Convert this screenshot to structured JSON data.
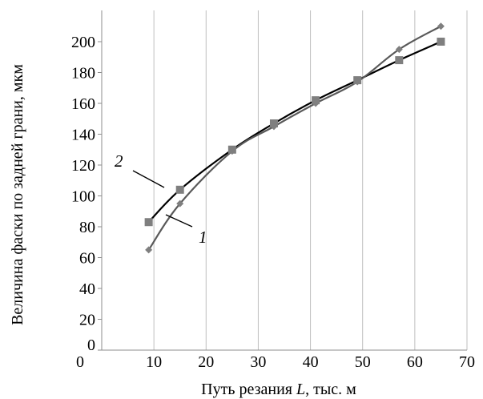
{
  "chart_data": {
    "type": "line",
    "title": "",
    "xlabel_parts": [
      "Путь резания ",
      "L",
      ", тыс. м"
    ],
    "ylabel": "Величина фаски по задней грани, мкм",
    "xlim": [
      0,
      70
    ],
    "ylim": [
      0,
      200
    ],
    "x_ticks": [
      "0",
      "10",
      "20",
      "30",
      "40",
      "50",
      "60",
      "70"
    ],
    "y_ticks": [
      "0",
      "20",
      "40",
      "60",
      "80",
      "100",
      "120",
      "140",
      "160",
      "180",
      "200"
    ],
    "grid": "vertical",
    "series": [
      {
        "name": "1",
        "marker": "diamond",
        "color": "#595959",
        "x": [
          9,
          15,
          25,
          33,
          41,
          49,
          57,
          65
        ],
        "y": [
          65,
          95,
          129,
          145,
          160,
          174,
          195,
          210
        ]
      },
      {
        "name": "2",
        "marker": "square",
        "color": "#000000",
        "x": [
          9,
          15,
          25,
          33,
          41,
          49,
          57,
          65
        ],
        "y": [
          83,
          104,
          130,
          147,
          162,
          175,
          188,
          200
        ]
      }
    ],
    "annotations": [
      {
        "text": "1",
        "series": "1"
      },
      {
        "text": "2",
        "series": "2"
      }
    ]
  }
}
